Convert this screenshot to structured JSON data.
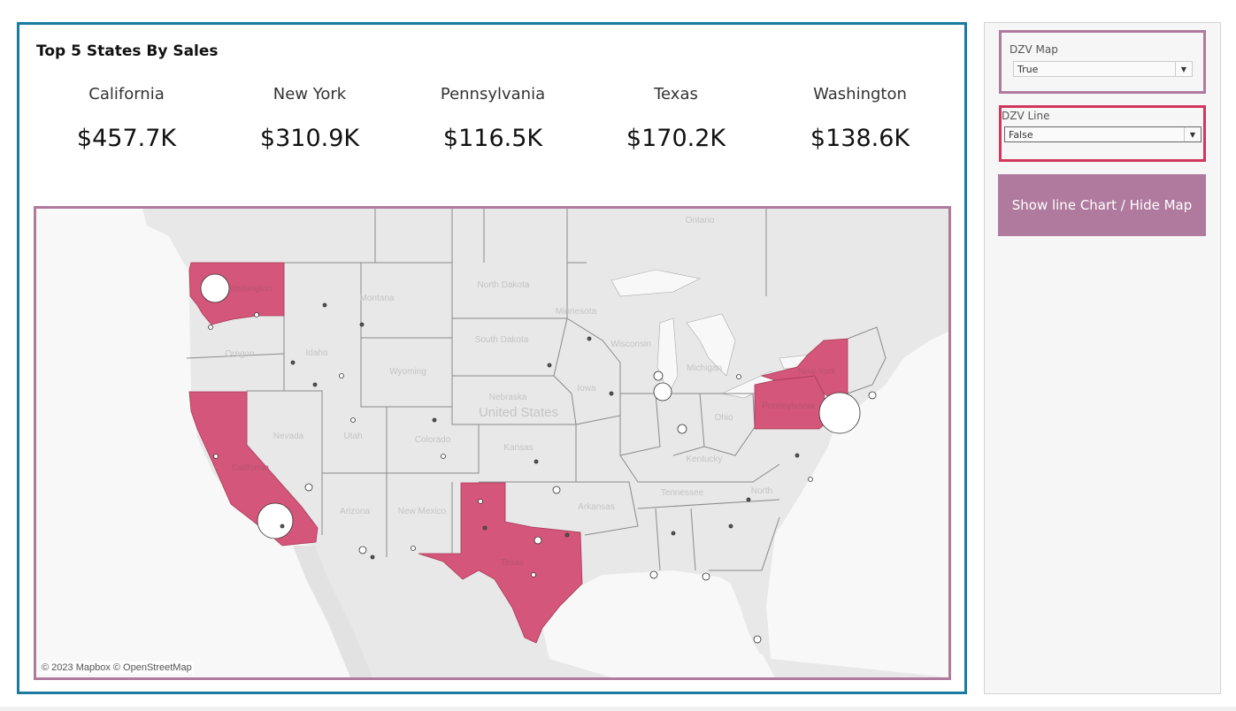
{
  "dashboard": {
    "title": "Top 5 States By Sales"
  },
  "kpis": [
    {
      "state": "California",
      "sales": "$457.7K"
    },
    {
      "state": "New York",
      "sales": "$310.9K"
    },
    {
      "state": "Pennsylvania",
      "sales": "$116.5K"
    },
    {
      "state": "Texas",
      "sales": "$170.2K"
    },
    {
      "state": "Washington",
      "sales": "$138.6K"
    }
  ],
  "map": {
    "attribution": "© 2023 Mapbox © OpenStreetMap",
    "highlight_color": "#d4567a",
    "land_color": "#e8e8e8",
    "highlighted_states": [
      "Washington",
      "California",
      "Texas",
      "Pennsylvania",
      "New York"
    ],
    "labels": {
      "country": "United States",
      "ontario": "Ontario",
      "washington": "Washington",
      "oregon": "Oregon",
      "idaho": "Idaho",
      "montana": "Montana",
      "wyoming": "Wyoming",
      "nevada": "Nevada",
      "utah": "Utah",
      "colorado": "Colorado",
      "california": "California",
      "arizona": "Arizona",
      "new_mexico": "New Mexico",
      "texas": "Texas",
      "north_dakota": "North Dakota",
      "south_dakota": "South Dakota",
      "nebraska": "Nebraska",
      "kansas": "Kansas",
      "minnesota": "Minnesota",
      "iowa": "Iowa",
      "wisconsin": "Wisconsin",
      "michigan": "Michigan",
      "ohio": "Ohio",
      "kentucky": "Kentucky",
      "tennessee": "Tennessee",
      "arkansas": "Arkansas",
      "pennsylvania": "Pennsylvania",
      "new_york": "New York",
      "north": "North"
    }
  },
  "sidebar": {
    "filter_map": {
      "label": "DZV Map",
      "value": "True"
    },
    "filter_line": {
      "label": "DZV Line",
      "value": "False"
    },
    "toggle_button": "Show line Chart / Hide Map",
    "border_map": "#b07a9e",
    "border_line": "#d0365e"
  }
}
